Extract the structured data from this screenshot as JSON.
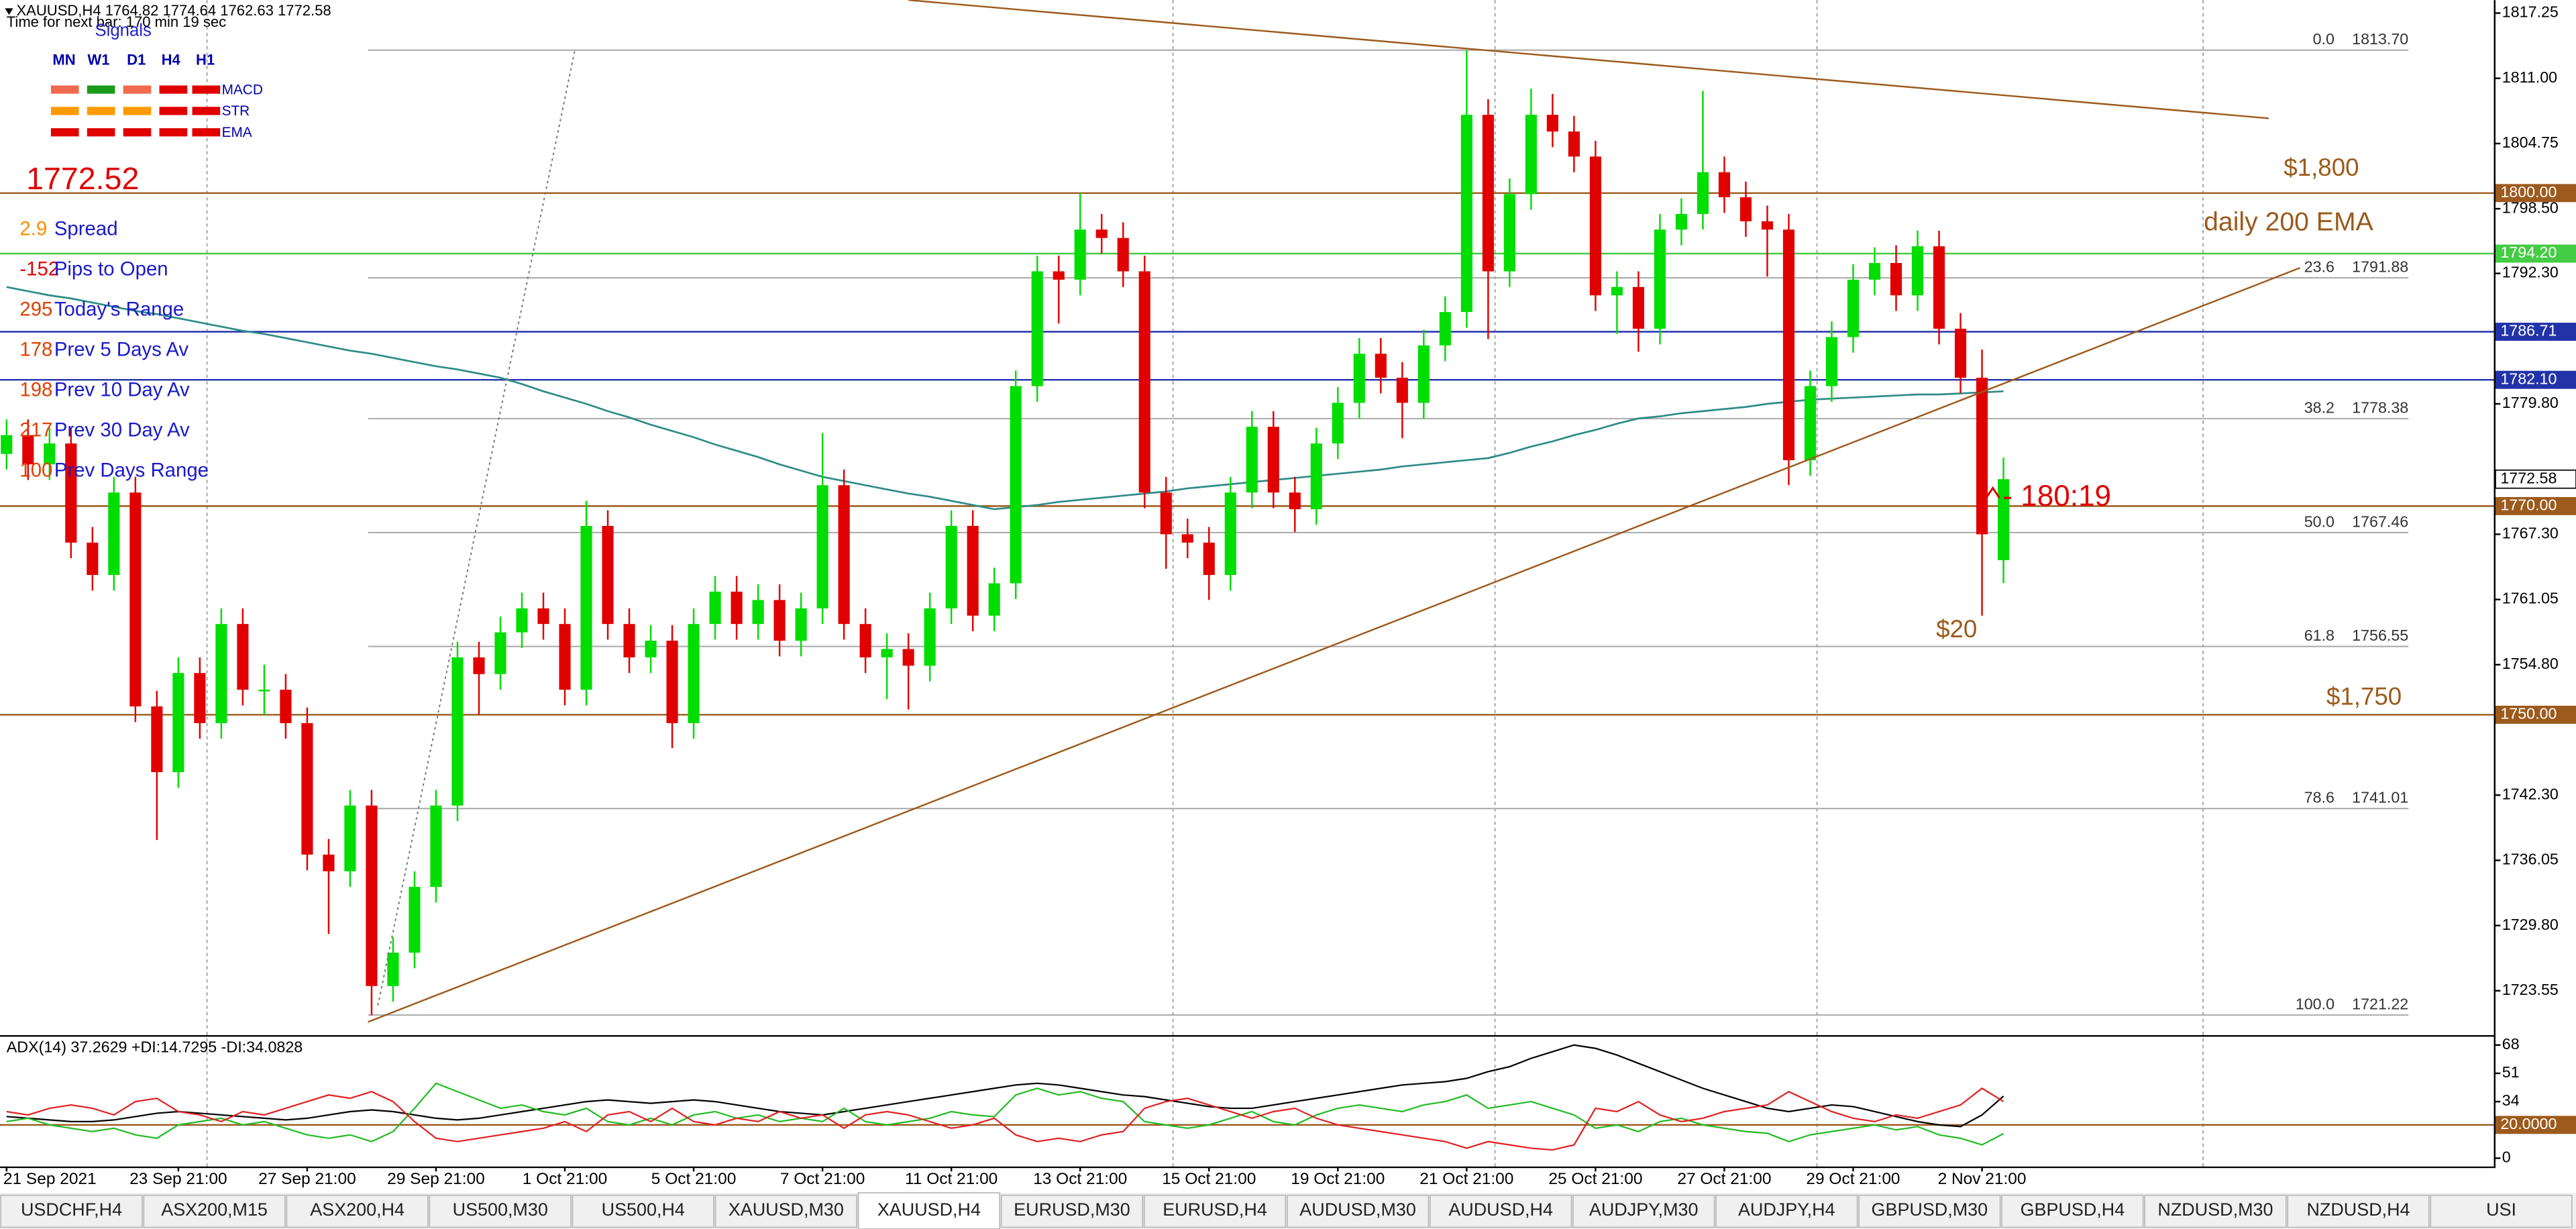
{
  "header": {
    "timer": "Time for next bar: 170 min 19 sec"
  },
  "signals": {
    "title": "Signals",
    "timeframes": [
      "MN",
      "W1",
      "D1",
      "H4",
      "H1"
    ],
    "rows": [
      "MACD",
      "STR",
      "EMA"
    ]
  },
  "bid_label": "1772.52",
  "stats": [
    {
      "value": "2.9",
      "label": "Spread",
      "color": "#ff8c00"
    },
    {
      "value": "-152",
      "label": "Pips to Open",
      "color": "#e00000"
    },
    {
      "value": "295",
      "label": "Today's Range",
      "color": "#e04000"
    },
    {
      "value": "178",
      "label": "Prev 5 Days Av",
      "color": "#e04000"
    },
    {
      "value": "198",
      "label": "Prev 10 Day Av",
      "color": "#e04000"
    },
    {
      "value": "217",
      "label": "Prev 30 Day Av",
      "color": "#e04000"
    },
    {
      "value": "100",
      "label": "Prev Days Range",
      "color": "#e04000"
    }
  ],
  "annotations": {
    "level_1800": "$1,800",
    "ema_note": "daily 200 EMA",
    "level_1750": "$1,750",
    "range_note": "$20",
    "timer_note": "- 180:19"
  },
  "tabs": [
    {
      "label": "USDCHF,H4",
      "active": false
    },
    {
      "label": "ASX200,M15",
      "active": false
    },
    {
      "label": "ASX200,H4",
      "active": false
    },
    {
      "label": "US500,M30",
      "active": false
    },
    {
      "label": "US500,H4",
      "active": false
    },
    {
      "label": "XAUUSD,M30",
      "active": false
    },
    {
      "label": "XAUUSD,H4",
      "active": true
    },
    {
      "label": "EURUSD,M30",
      "active": false
    },
    {
      "label": "EURUSD,H4",
      "active": false
    },
    {
      "label": "AUDUSD,M30",
      "active": false
    },
    {
      "label": "AUDUSD,H4",
      "active": false
    },
    {
      "label": "AUDJPY,M30",
      "active": false
    },
    {
      "label": "AUDJPY,H4",
      "active": false
    },
    {
      "label": "GBPUSD,M30",
      "active": false
    },
    {
      "label": "GBPUSD,H4",
      "active": false
    },
    {
      "label": "NZDUSD,M30",
      "active": false
    },
    {
      "label": "NZDUSD,H4",
      "active": false
    },
    {
      "label": "USI",
      "active": false
    }
  ],
  "chart_data": [
    {
      "type": "candlestick",
      "title": "XAUUSD,H4  1764.82 1774.64 1762.63 1772.58",
      "up_color": "#00dd00",
      "down_color": "#e00000",
      "categories": [
        "21 Sep 2021",
        null,
        null,
        null,
        null,
        null,
        null,
        null,
        "23 Sep 21:00",
        null,
        null,
        null,
        null,
        null,
        "27 Sep 21:00",
        null,
        null,
        null,
        null,
        null,
        "29 Sep 21:00",
        null,
        null,
        null,
        null,
        null,
        "1 Oct 21:00",
        null,
        null,
        null,
        null,
        null,
        "5 Oct 21:00",
        null,
        null,
        null,
        null,
        null,
        "7 Oct 21:00",
        null,
        null,
        null,
        null,
        null,
        "11 Oct 21:00",
        null,
        null,
        null,
        null,
        null,
        "13 Oct 21:00",
        null,
        null,
        null,
        null,
        null,
        "15 Oct 21:00",
        null,
        null,
        null,
        null,
        null,
        "19 Oct 21:00",
        null,
        null,
        null,
        null,
        null,
        "21 Oct 21:00",
        null,
        null,
        null,
        null,
        null,
        "25 Oct 21:00",
        null,
        null,
        null,
        null,
        null,
        "27 Oct 21:00",
        null,
        null,
        null,
        null,
        null,
        "29 Oct 21:00",
        null,
        null,
        null,
        null,
        null,
        "2 Nov 21:00",
        null
      ],
      "open": [
        1775.0,
        1776.8,
        1774.0,
        1776.0,
        1766.5,
        1763.4,
        1771.3,
        1750.8,
        1744.5,
        1754.0,
        1749.2,
        1758.7,
        1752.4,
        1752.4,
        1749.2,
        1736.6,
        1735.0,
        1741.3,
        1724.0,
        1727.2,
        1733.5,
        1741.3,
        1755.5,
        1753.9,
        1757.9,
        1760.2,
        1758.7,
        1752.4,
        1768.1,
        1758.7,
        1755.5,
        1757.1,
        1749.2,
        1758.7,
        1761.8,
        1758.7,
        1761.0,
        1757.1,
        1760.2,
        1772.0,
        1758.7,
        1755.5,
        1756.3,
        1754.7,
        1760.2,
        1768.1,
        1759.5,
        1762.6,
        1781.5,
        1792.5,
        1791.7,
        1796.5,
        1795.7,
        1792.5,
        1771.3,
        1767.3,
        1766.5,
        1763.4,
        1771.3,
        1777.6,
        1771.3,
        1769.7,
        1776.0,
        1779.9,
        1784.6,
        1782.3,
        1779.9,
        1785.4,
        1788.6,
        1807.5,
        1792.5,
        1799.9,
        1807.5,
        1805.9,
        1803.5,
        1790.2,
        1791.0,
        1787.0,
        1796.5,
        1798.0,
        1802.0,
        1799.6,
        1797.3,
        1796.5,
        1774.4,
        1781.5,
        1786.2,
        1791.7,
        1793.3,
        1790.2,
        1794.9,
        1787.0,
        1782.3,
        1764.82
      ],
      "high": [
        1778.3,
        1778.3,
        1777.5,
        1777.5,
        1768.0,
        1772.8,
        1772.8,
        1752.3,
        1755.5,
        1755.5,
        1760.2,
        1760.2,
        1754.8,
        1753.9,
        1750.7,
        1738.1,
        1742.8,
        1742.8,
        1728.7,
        1735.0,
        1742.8,
        1757.0,
        1757.0,
        1759.4,
        1761.7,
        1761.7,
        1760.2,
        1770.5,
        1769.6,
        1760.2,
        1758.6,
        1758.6,
        1760.2,
        1763.3,
        1763.3,
        1762.5,
        1762.5,
        1761.7,
        1777.0,
        1773.5,
        1760.2,
        1757.8,
        1757.8,
        1761.7,
        1769.6,
        1769.6,
        1764.1,
        1783.0,
        1794.0,
        1794.0,
        1800.0,
        1798.0,
        1797.2,
        1794.0,
        1772.8,
        1768.8,
        1768.0,
        1772.8,
        1779.1,
        1779.1,
        1772.8,
        1777.5,
        1781.4,
        1786.1,
        1786.1,
        1783.8,
        1786.9,
        1790.1,
        1813.7,
        1809.0,
        1801.4,
        1810.0,
        1809.5,
        1807.4,
        1805.0,
        1792.5,
        1792.5,
        1798.0,
        1799.5,
        1809.8,
        1803.5,
        1801.1,
        1798.8,
        1798.0,
        1783.0,
        1787.7,
        1793.2,
        1794.8,
        1795.0,
        1796.4,
        1796.4,
        1788.5,
        1785.0,
        1774.64
      ],
      "low": [
        1773.5,
        1772.5,
        1772.5,
        1765.0,
        1761.9,
        1761.9,
        1749.3,
        1738.0,
        1743.0,
        1747.7,
        1747.7,
        1750.9,
        1750.0,
        1747.7,
        1735.1,
        1729.0,
        1733.5,
        1721.2,
        1722.5,
        1725.7,
        1732.0,
        1739.8,
        1750.0,
        1752.4,
        1756.4,
        1757.2,
        1750.9,
        1750.9,
        1757.2,
        1754.0,
        1754.0,
        1746.8,
        1747.7,
        1757.2,
        1757.2,
        1757.2,
        1755.6,
        1755.6,
        1758.7,
        1757.2,
        1754.0,
        1751.5,
        1750.5,
        1753.2,
        1758.7,
        1758.0,
        1758.0,
        1761.1,
        1780.0,
        1787.5,
        1790.2,
        1794.2,
        1791.0,
        1769.8,
        1764.0,
        1765.0,
        1761.0,
        1761.9,
        1769.8,
        1769.8,
        1767.5,
        1768.2,
        1774.5,
        1778.4,
        1780.8,
        1776.5,
        1778.4,
        1783.9,
        1787.1,
        1786.0,
        1791.0,
        1798.4,
        1804.4,
        1802.0,
        1788.7,
        1786.5,
        1784.8,
        1785.5,
        1795.0,
        1796.5,
        1798.1,
        1795.8,
        1792.0,
        1772.0,
        1772.9,
        1780.0,
        1784.7,
        1790.2,
        1788.7,
        1788.7,
        1785.5,
        1780.8,
        1759.5,
        1762.63
      ],
      "close": [
        1776.8,
        1774.0,
        1776.0,
        1766.5,
        1763.4,
        1771.3,
        1750.8,
        1744.5,
        1754.0,
        1749.2,
        1758.7,
        1752.4,
        1752.4,
        1749.2,
        1736.6,
        1735.0,
        1741.3,
        1724.0,
        1727.2,
        1733.5,
        1741.3,
        1755.5,
        1753.9,
        1757.9,
        1760.2,
        1758.7,
        1752.4,
        1768.1,
        1758.7,
        1755.5,
        1757.1,
        1749.2,
        1758.7,
        1761.8,
        1758.7,
        1761.0,
        1757.1,
        1760.2,
        1772.0,
        1758.7,
        1755.5,
        1756.3,
        1754.7,
        1760.2,
        1768.1,
        1759.5,
        1762.6,
        1781.5,
        1792.5,
        1791.7,
        1796.5,
        1795.7,
        1792.5,
        1771.3,
        1767.3,
        1766.5,
        1763.4,
        1771.3,
        1777.6,
        1771.3,
        1769.7,
        1776.0,
        1779.9,
        1784.6,
        1782.3,
        1779.9,
        1785.4,
        1788.6,
        1807.5,
        1792.5,
        1799.9,
        1807.5,
        1805.9,
        1803.5,
        1790.2,
        1791.0,
        1787.0,
        1796.5,
        1798.0,
        1802.0,
        1799.6,
        1797.3,
        1796.5,
        1774.4,
        1781.5,
        1786.2,
        1791.7,
        1793.3,
        1790.2,
        1794.9,
        1787.0,
        1782.3,
        1767.3,
        1772.58
      ],
      "ema": {
        "color": "#2e8b87",
        "values": [
          1791.0,
          1790.6,
          1790.2,
          1789.9,
          1789.5,
          1789.1,
          1788.7,
          1788.4,
          1788.0,
          1787.6,
          1787.2,
          1786.8,
          1786.5,
          1786.1,
          1785.7,
          1785.3,
          1784.9,
          1784.6,
          1784.2,
          1783.8,
          1783.4,
          1783.1,
          1782.7,
          1782.3,
          1781.7,
          1781.0,
          1780.4,
          1779.8,
          1779.1,
          1778.5,
          1777.8,
          1777.2,
          1776.6,
          1775.9,
          1775.3,
          1774.7,
          1774.0,
          1773.4,
          1772.8,
          1772.4,
          1772.0,
          1771.6,
          1771.2,
          1770.9,
          1770.5,
          1770.1,
          1769.7,
          1769.9,
          1770.1,
          1770.4,
          1770.6,
          1770.8,
          1771.0,
          1771.2,
          1771.4,
          1771.7,
          1771.9,
          1772.1,
          1772.3,
          1772.5,
          1772.7,
          1772.9,
          1773.1,
          1773.3,
          1773.5,
          1773.8,
          1774.0,
          1774.2,
          1774.4,
          1774.6,
          1775.1,
          1775.7,
          1776.2,
          1776.8,
          1777.3,
          1777.9,
          1778.4,
          1778.6,
          1778.9,
          1779.1,
          1779.3,
          1779.5,
          1779.8,
          1780.0,
          1780.2,
          1780.3,
          1780.4,
          1780.5,
          1780.6,
          1780.7,
          1780.7,
          1780.8,
          1780.9,
          1781.0
        ]
      },
      "ylim": [
        1719.3,
        1818.5
      ],
      "yticks": [
        1817.25,
        {
          "value": 1811,
          "label": "1811.00"
        },
        1804.75,
        {
          "value": 1798.5,
          "label": "1798.50"
        },
        {
          "value": 1792.3,
          "label": "1792.30"
        },
        {
          "value": 1779.8,
          "label": "1779.80"
        },
        {
          "value": 1767.3,
          "label": "1767.30"
        },
        1761.05,
        {
          "value": 1754.8,
          "label": "1754.80"
        },
        {
          "value": 1742.3,
          "label": "1742.30"
        },
        1736.05,
        {
          "value": 1729.8,
          "label": "1729.80"
        },
        1723.55
      ],
      "levels": [
        {
          "value": 1800,
          "label": "1800.00",
          "color": "#9c5a1c"
        },
        {
          "value": 1794.2,
          "label": "1794.20",
          "color": "#44cc44"
        },
        {
          "value": 1786.71,
          "color": "#2233aa"
        },
        {
          "value": 1782.1,
          "label": "1782.10",
          "color": "#2233aa"
        },
        {
          "value": 1770,
          "label": "1770.00",
          "color": "#9c5a1c"
        },
        {
          "value": 1750,
          "label": "1750.00",
          "color": "#9c5a1c"
        }
      ],
      "fib": [
        {
          "ratio": "0.0",
          "price": {
            "value": 1813.7,
            "label": "1813.70"
          }
        },
        {
          "ratio": "23.6",
          "price": 1791.88
        },
        {
          "ratio": "38.2",
          "price": 1778.38
        },
        {
          "ratio": "50.0",
          "price": 1767.46
        },
        {
          "ratio": "61.8",
          "price": 1756.55
        },
        {
          "ratio": "78.6",
          "price": 1741.01
        },
        {
          "ratio": "100.0",
          "price": 1721.22
        }
      ]
    },
    {
      "type": "line",
      "title": "ADX(14) 37.2629 +DI:14.7295 -DI:34.0828",
      "series": [
        {
          "color": "#000000",
          "values": [
            25,
            24,
            23,
            22,
            22,
            23,
            25,
            27,
            28,
            27,
            26,
            25,
            24,
            23,
            24,
            26,
            28,
            29,
            28,
            26,
            24,
            23,
            24,
            26,
            28,
            30,
            32,
            34,
            35,
            34,
            33,
            34,
            35,
            34,
            32,
            30,
            28,
            27,
            26,
            28,
            30,
            32,
            34,
            36,
            38,
            40,
            42,
            44,
            45,
            44,
            42,
            40,
            38,
            37,
            35,
            33,
            31,
            30,
            30,
            32,
            34,
            36,
            38,
            40,
            42,
            44,
            45,
            46,
            48,
            52,
            55,
            60,
            64,
            68,
            66,
            62,
            57,
            52,
            47,
            42,
            38,
            34,
            30,
            28,
            30,
            32,
            31,
            28,
            25,
            22,
            20,
            19,
            26,
            37.26
          ]
        },
        {
          "color": "#22bb22",
          "values": [
            22,
            24,
            20,
            18,
            16,
            18,
            14,
            12,
            20,
            22,
            24,
            20,
            22,
            18,
            14,
            12,
            14,
            10,
            16,
            30,
            45,
            40,
            35,
            30,
            32,
            28,
            26,
            30,
            22,
            20,
            24,
            20,
            26,
            28,
            24,
            26,
            22,
            24,
            22,
            30,
            22,
            20,
            22,
            24,
            28,
            26,
            25,
            38,
            42,
            38,
            40,
            36,
            34,
            22,
            20,
            18,
            20,
            24,
            28,
            22,
            20,
            26,
            30,
            32,
            30,
            28,
            32,
            34,
            38,
            30,
            32,
            34,
            30,
            26,
            18,
            20,
            16,
            22,
            24,
            20,
            18,
            16,
            15,
            10,
            14,
            16,
            18,
            20,
            17,
            19,
            14,
            12,
            8,
            14.73
          ]
        },
        {
          "color": "#e02020",
          "values": [
            28,
            26,
            30,
            32,
            30,
            26,
            34,
            36,
            28,
            26,
            22,
            28,
            26,
            30,
            34,
            38,
            36,
            40,
            34,
            22,
            12,
            10,
            12,
            14,
            16,
            18,
            22,
            16,
            26,
            28,
            22,
            30,
            22,
            20,
            24,
            22,
            28,
            24,
            26,
            18,
            26,
            28,
            26,
            22,
            18,
            20,
            24,
            14,
            10,
            12,
            10,
            14,
            16,
            30,
            34,
            36,
            32,
            28,
            24,
            28,
            30,
            24,
            20,
            18,
            16,
            14,
            12,
            10,
            6,
            10,
            8,
            6,
            5,
            8,
            30,
            28,
            34,
            26,
            22,
            24,
            28,
            30,
            32,
            40,
            34,
            28,
            24,
            22,
            26,
            24,
            28,
            32,
            42,
            34.08
          ]
        }
      ],
      "ylim": [
        -5,
        72
      ],
      "yticks": [
        68,
        51,
        34,
        0
      ],
      "levels": [
        {
          "value": 20,
          "label": "20.0000",
          "color": "#9c5a1c"
        }
      ]
    }
  ]
}
